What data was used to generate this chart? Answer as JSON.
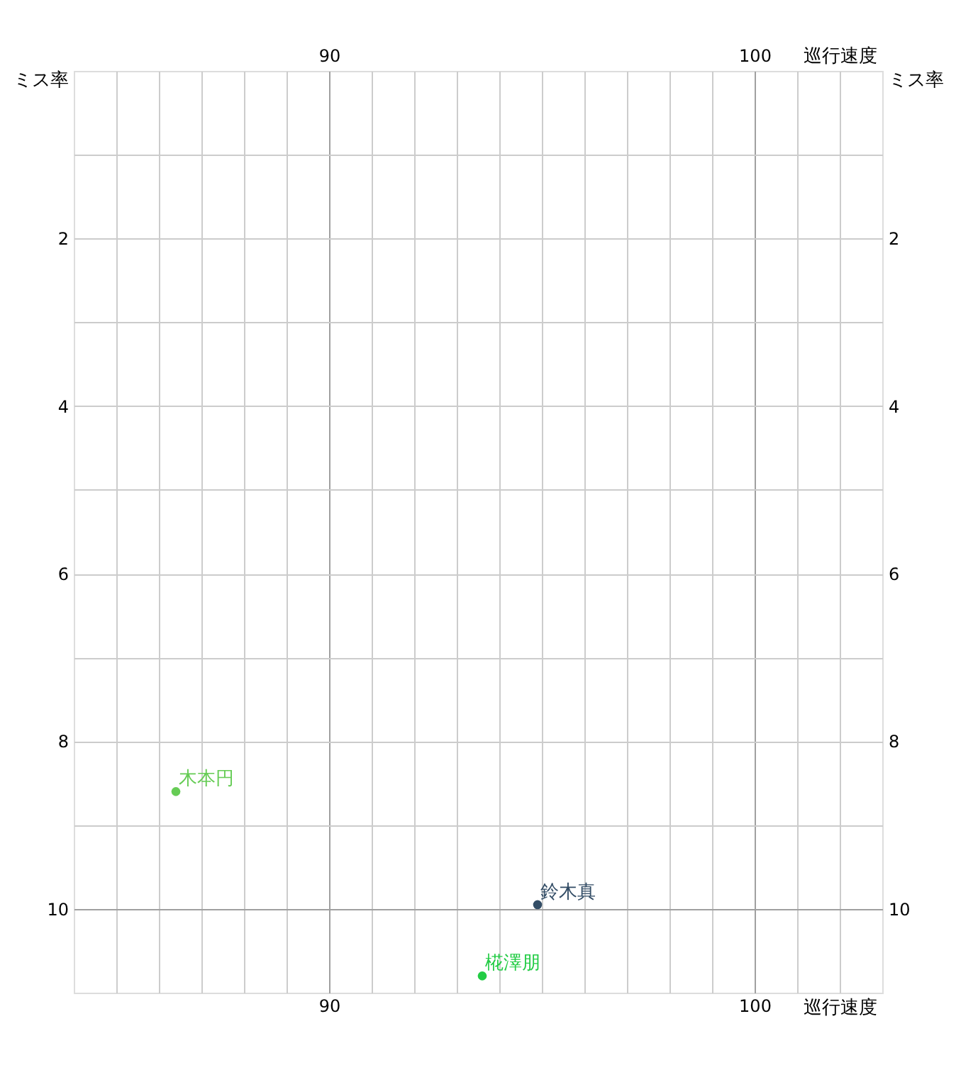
{
  "chart_data": {
    "type": "scatter",
    "xlabel": "巡行速度",
    "x2label": "巡行速度",
    "ylabel": "ミス率",
    "y2label": "ミス率",
    "xlim": [
      84,
      103
    ],
    "x2lim": [
      84,
      103
    ],
    "ylim": [
      11,
      0
    ],
    "y2lim": [
      11,
      0
    ],
    "xticks": [
      {
        "value": 85,
        "label": null
      },
      {
        "value": 86,
        "label": null
      },
      {
        "value": 87,
        "label": null
      },
      {
        "value": 88,
        "label": null
      },
      {
        "value": 89,
        "label": null
      },
      90,
      {
        "value": 91,
        "label": null
      },
      {
        "value": 92,
        "label": null
      },
      {
        "value": 93,
        "label": null
      },
      {
        "value": 94,
        "label": null
      },
      {
        "value": 95,
        "label": null
      },
      {
        "value": 96,
        "label": null
      },
      {
        "value": 97,
        "label": null
      },
      {
        "value": 98,
        "label": null
      },
      {
        "value": 99,
        "label": null
      },
      100,
      {
        "value": 101,
        "label": null
      },
      {
        "value": 102,
        "label": null
      }
    ],
    "x2ticks": [
      90,
      100
    ],
    "yticks": [
      {
        "value": 1,
        "label": null
      },
      2,
      {
        "value": 3,
        "label": null
      },
      4,
      {
        "value": 5,
        "label": null
      },
      6,
      {
        "value": 7,
        "label": null
      },
      8,
      {
        "value": 9,
        "label": null
      },
      10
    ],
    "y2ticks": [
      2,
      4,
      6,
      8,
      10
    ],
    "grid": true,
    "marker": "circle",
    "series": [
      {
        "name": "木本円",
        "color": "#66cc55",
        "x": [
          86.4
        ],
        "values": [
          8.6
        ]
      },
      {
        "name": "鈴木真",
        "color": "#334d66",
        "x": [
          94.9
        ],
        "values": [
          9.95
        ]
      },
      {
        "name": "椛澤朋",
        "color": "#22cc44",
        "x": [
          93.6
        ],
        "values": [
          10.8
        ]
      }
    ]
  }
}
